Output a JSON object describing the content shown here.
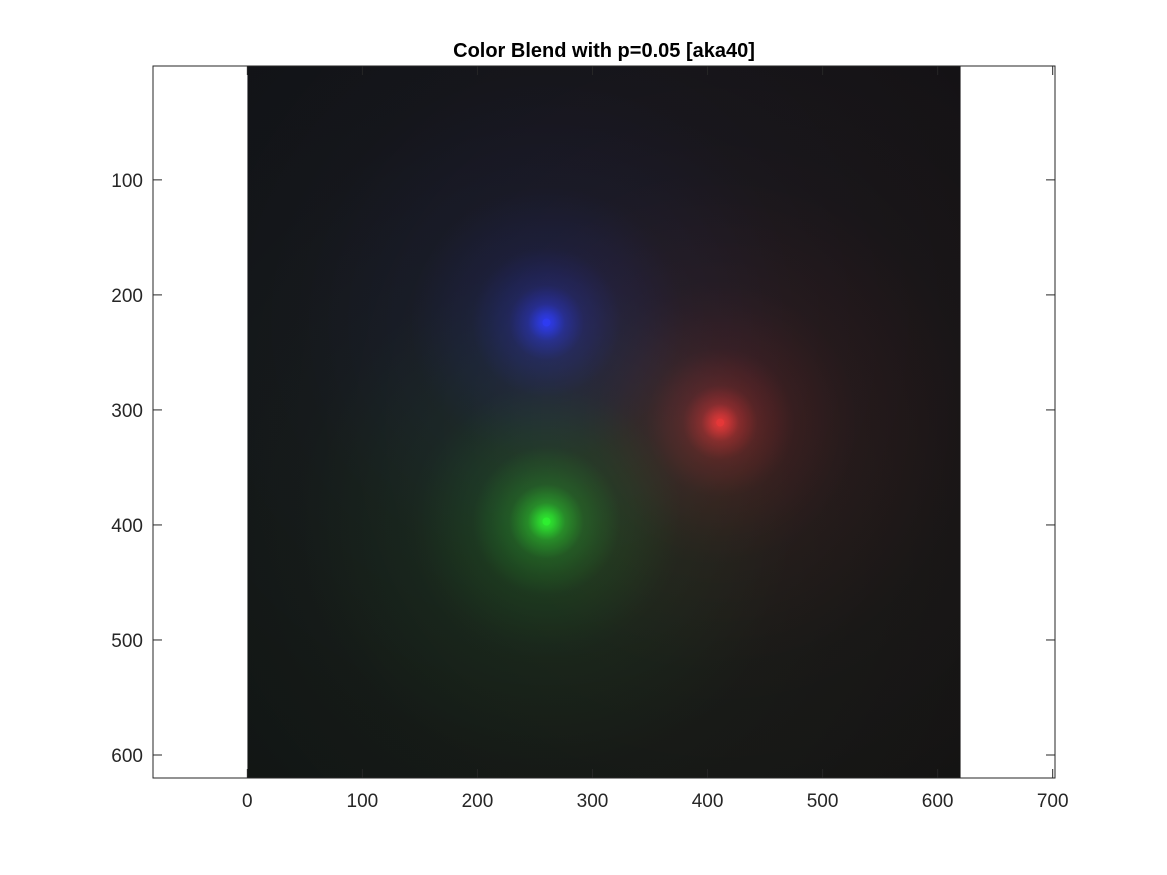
{
  "chart_data": {
    "type": "heatmap",
    "title": "Color Blend with p=0.05 [aka40]",
    "xlabel": "",
    "ylabel": "",
    "xlim": [
      -82,
      702
    ],
    "ylim": [
      620,
      1
    ],
    "image_extent": {
      "x": [
        0,
        620
      ],
      "y": [
        1,
        620
      ]
    },
    "xticks": [
      0,
      100,
      200,
      300,
      400,
      500,
      600,
      700
    ],
    "yticks": [
      100,
      200,
      300,
      400,
      500,
      600
    ],
    "grid": false,
    "background_color": "#0e0f10",
    "sources": [
      {
        "name": "red",
        "color": "#ff1e1e",
        "x": 411,
        "y": 311
      },
      {
        "name": "blue",
        "color": "#2222ff",
        "x": 260,
        "y": 224
      },
      {
        "name": "green",
        "color": "#22ee22",
        "x": 260,
        "y": 397
      }
    ],
    "p": 0.05
  }
}
